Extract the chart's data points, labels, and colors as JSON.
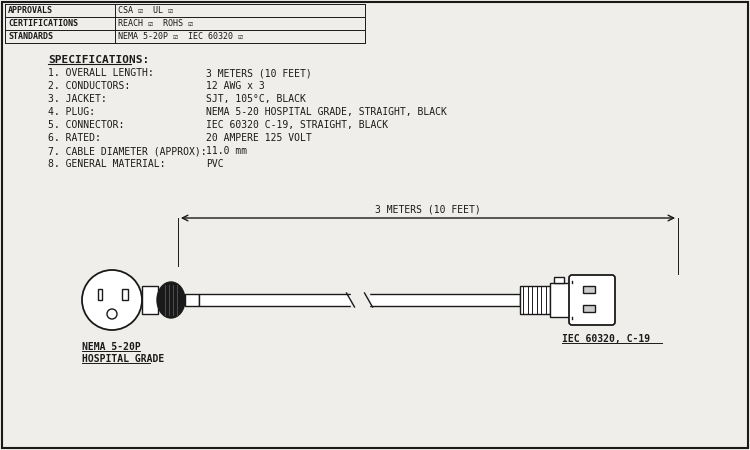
{
  "bg_color": "#f0eeea",
  "line_color": "#1a1a1a",
  "header_rows": [
    [
      "APPROVALS",
      "CSA ☑  UL ☑"
    ],
    [
      "CERTIFICATIONS",
      "REACH ☑  ROHS ☑"
    ],
    [
      "STANDARDS",
      "NEMA 5-20P ☑  IEC 60320 ☑"
    ]
  ],
  "specs_title": "SPECIFICATIONS:",
  "specs": [
    [
      "1. OVERALL LENGTH:",
      "3 METERS (10 FEET)"
    ],
    [
      "2. CONDUCTORS:",
      "12 AWG x 3"
    ],
    [
      "3. JACKET:",
      "SJT, 105°C, BLACK"
    ],
    [
      "4. PLUG:",
      "NEMA 5-20 HOSPITAL GRADE, STRAIGHT, BLACK"
    ],
    [
      "5. CONNECTOR:",
      "IEC 60320 C-19, STRAIGHT, BLACK"
    ],
    [
      "6. RATED:",
      "20 AMPERE 125 VOLT"
    ],
    [
      "7. CABLE DIAMETER (APPROX):",
      "11.0 mm"
    ],
    [
      "8. GENERAL MATERIAL:",
      "PVC"
    ]
  ],
  "dimension_label": "3 METERS (10 FEET)",
  "left_label_line1": "NEMA 5-20P",
  "left_label_line2": "HOSPITAL GRADE",
  "right_label": "IEC 60320, C-19",
  "font_size_small": 7,
  "font_size_medium": 8
}
